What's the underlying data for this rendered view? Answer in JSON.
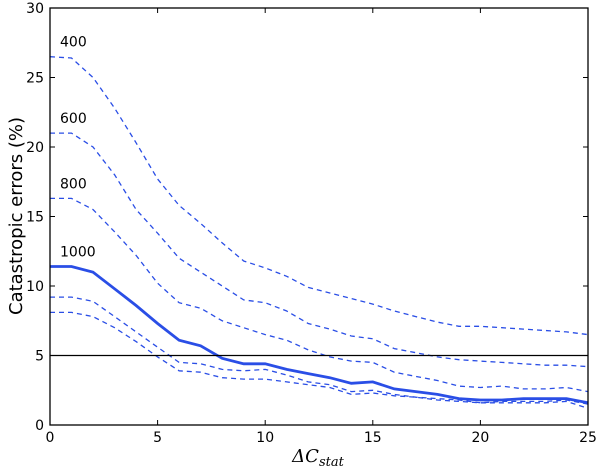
{
  "chart_data": {
    "type": "line",
    "title": "",
    "xlabel": "ΔC",
    "xlabel_sub": "stat",
    "ylabel": "Catastropic errors (%)",
    "xlim": [
      0,
      25
    ],
    "ylim": [
      0,
      30
    ],
    "xticks": [
      "0",
      "5",
      "10",
      "15",
      "20",
      "25"
    ],
    "yticks": [
      "0",
      "5",
      "10",
      "15",
      "20",
      "25",
      "30"
    ],
    "grid": false,
    "hline": 5,
    "x": [
      0,
      1,
      2,
      3,
      4,
      5,
      6,
      7,
      8,
      9,
      10,
      11,
      12,
      13,
      14,
      15,
      16,
      17,
      18,
      19,
      20,
      21,
      22,
      23,
      24,
      25
    ],
    "series": [
      {
        "name": "400",
        "style": "dashed",
        "values": [
          26.5,
          26.4,
          25,
          22.8,
          20.3,
          17.7,
          15.8,
          14.5,
          13.1,
          11.8,
          11.3,
          10.7,
          9.9,
          9.5,
          9.1,
          8.7,
          8.2,
          7.8,
          7.4,
          7.1,
          7.1,
          7.0,
          6.9,
          6.8,
          6.7,
          6.5
        ]
      },
      {
        "name": "600",
        "style": "dashed",
        "values": [
          21,
          21,
          20,
          18,
          15.5,
          13.8,
          12,
          11,
          10,
          9,
          8.8,
          8.2,
          7.3,
          6.9,
          6.4,
          6.2,
          5.5,
          5.2,
          4.9,
          4.7,
          4.6,
          4.5,
          4.4,
          4.3,
          4.3,
          4.2
        ]
      },
      {
        "name": "800",
        "style": "dashed",
        "values": [
          16.3,
          16.3,
          15.5,
          13.9,
          12.2,
          10.2,
          8.8,
          8.4,
          7.5,
          7.0,
          6.5,
          6.1,
          5.4,
          4.9,
          4.6,
          4.5,
          3.8,
          3.5,
          3.2,
          2.8,
          2.7,
          2.8,
          2.6,
          2.6,
          2.7,
          2.4
        ]
      },
      {
        "name": "1000",
        "style": "solid",
        "values": [
          11.4,
          11.4,
          11.0,
          9.8,
          8.6,
          7.3,
          6.1,
          5.7,
          4.8,
          4.4,
          4.4,
          4.0,
          3.7,
          3.4,
          3.0,
          3.1,
          2.6,
          2.4,
          2.2,
          1.9,
          1.8,
          1.8,
          1.9,
          1.9,
          1.9,
          1.6
        ]
      },
      {
        "name": "",
        "style": "dashed",
        "values": [
          9.2,
          9.2,
          8.9,
          7.8,
          6.7,
          5.6,
          4.5,
          4.4,
          4.0,
          3.9,
          4.0,
          3.6,
          3.1,
          2.9,
          2.4,
          2.5,
          2.2,
          2.0,
          1.9,
          1.8,
          1.6,
          1.7,
          1.7,
          1.7,
          1.8,
          1.5
        ]
      },
      {
        "name": "",
        "style": "dashed",
        "values": [
          8.1,
          8.1,
          7.8,
          7.0,
          6.0,
          4.9,
          3.9,
          3.8,
          3.4,
          3.3,
          3.3,
          3.1,
          2.9,
          2.7,
          2.2,
          2.3,
          2.1,
          2.0,
          1.8,
          1.7,
          1.6,
          1.6,
          1.6,
          1.6,
          1.7,
          1.2
        ]
      }
    ],
    "line_color": "#2a4ee6"
  }
}
